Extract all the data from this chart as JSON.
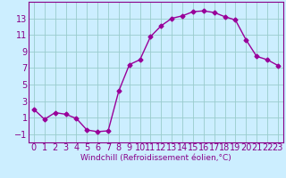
{
  "x": [
    0,
    1,
    2,
    3,
    4,
    5,
    6,
    7,
    8,
    9,
    10,
    11,
    12,
    13,
    14,
    15,
    16,
    17,
    18,
    19,
    20,
    21,
    22,
    23
  ],
  "y": [
    2.0,
    0.8,
    1.6,
    1.4,
    0.9,
    -0.5,
    -0.7,
    -0.6,
    4.2,
    7.4,
    8.0,
    10.8,
    12.1,
    13.0,
    13.3,
    13.8,
    13.9,
    13.7,
    13.2,
    12.8,
    10.4,
    8.4,
    8.0,
    7.3
  ],
  "line_color": "#990099",
  "marker": "D",
  "marker_size": 2.5,
  "bg_color": "#cceeff",
  "grid_color": "#99cccc",
  "xlabel": "Windchill (Refroidissement éolien,°C)",
  "xlim": [
    -0.5,
    23.5
  ],
  "ylim": [
    -2,
    15
  ],
  "xticks": [
    0,
    1,
    2,
    3,
    4,
    5,
    6,
    7,
    8,
    9,
    10,
    11,
    12,
    13,
    14,
    15,
    16,
    17,
    18,
    19,
    20,
    21,
    22,
    23
  ],
  "yticks": [
    -1,
    1,
    3,
    5,
    7,
    9,
    11,
    13
  ],
  "tick_label_color": "#880088",
  "xlabel_color": "#880088",
  "xlabel_fontsize": 6.5,
  "tick_fontsize": 7.0,
  "spine_color": "#880088"
}
